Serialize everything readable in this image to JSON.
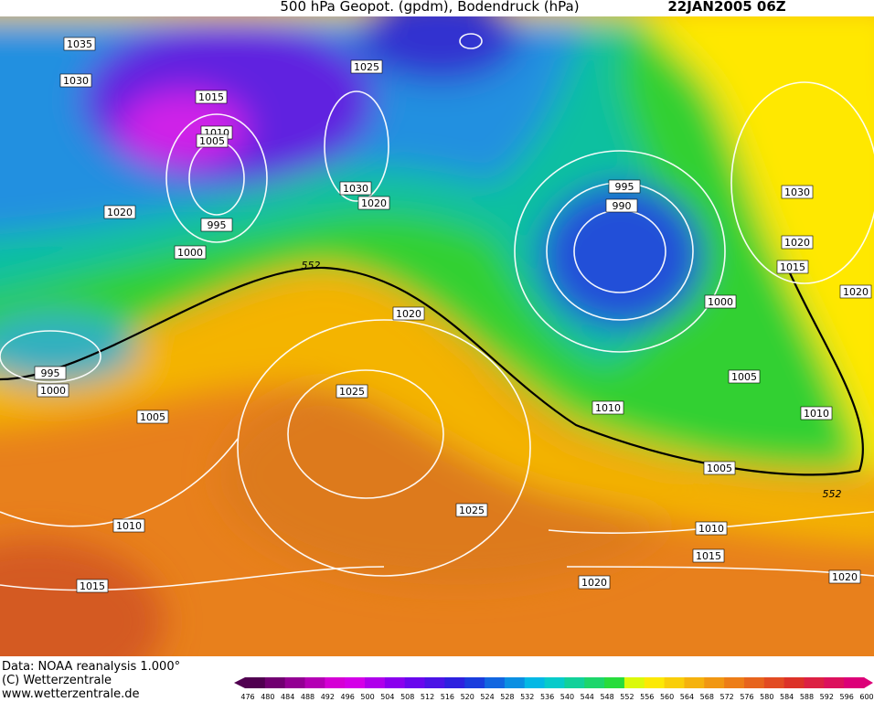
{
  "header": {
    "title": "500 hPa Geopot. (gpdm), Bodendruck (hPa)",
    "date": "22JAN2005 06Z"
  },
  "map": {
    "isobar_labels": [
      1035,
      1030,
      1015,
      1010,
      1005,
      1020,
      995,
      1000,
      1025,
      1030,
      1020,
      995,
      990,
      1030,
      1020,
      1015,
      1020,
      1000,
      1020,
      995,
      1000,
      1005,
      1025,
      1005,
      1010,
      1010,
      1005,
      1025,
      1010,
      1010,
      1015,
      1015,
      1020,
      1020
    ],
    "geopotential_labels": [
      552,
      552
    ]
  },
  "footer": {
    "lines": [
      "Data: NOAA reanalysis 1.000°",
      "(C) Wetterzentrale",
      "www.wetterzentrale.de"
    ]
  },
  "colorbar": {
    "labels": [
      476,
      480,
      484,
      488,
      492,
      496,
      500,
      504,
      508,
      512,
      516,
      520,
      524,
      528,
      532,
      536,
      540,
      544,
      548,
      552,
      556,
      560,
      564,
      568,
      572,
      576,
      580,
      584,
      588,
      592,
      596,
      600
    ]
  }
}
